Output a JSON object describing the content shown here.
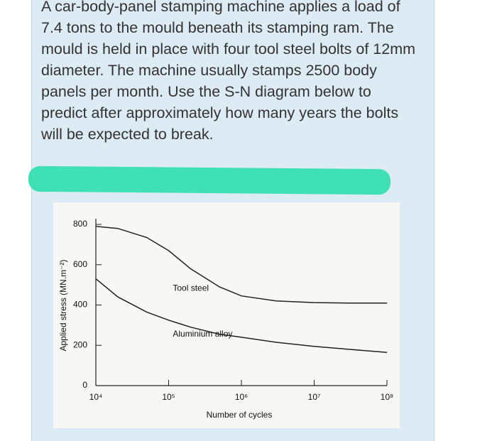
{
  "question": "A car-body-panel stamping machine applies a load of 7.4 tons to the mould beneath its stamping ram. The mould is held in place with four tool steel bolts of 12mm diameter. The machine usually stamps 2500 body panels per month. Use the S-N diagram below to predict after approximately how many years the bolts will be expected to break.",
  "chart_data": {
    "type": "line",
    "x_label": "Number of cycles",
    "y_label": "Applied stress (MN.m⁻²)",
    "x": [
      10000,
      20000,
      50000,
      100000,
      200000,
      500000,
      1000000,
      3000000,
      10000000,
      30000000,
      100000000
    ],
    "series": [
      {
        "name": "Tool steel",
        "color": "#222222",
        "values": [
          790,
          780,
          735,
          670,
          580,
          490,
          445,
          420,
          412,
          410,
          410
        ]
      },
      {
        "name": "Aluminium alloy",
        "color": "#222222",
        "values": [
          530,
          440,
          365,
          325,
          290,
          255,
          240,
          215,
          195,
          180,
          165
        ]
      }
    ],
    "xlim": [
      10000,
      100000000
    ],
    "xticks": [
      {
        "value": 10000,
        "label": "10⁴"
      },
      {
        "value": 100000,
        "label": "10⁵"
      },
      {
        "value": 1000000,
        "label": "10⁶"
      },
      {
        "value": 10000000,
        "label": "10⁷"
      },
      {
        "value": 100000000,
        "label": "10⁸"
      }
    ],
    "x_log": true,
    "ylim": [
      0,
      800
    ],
    "yticks": [
      0,
      200,
      400,
      600,
      800
    ]
  }
}
